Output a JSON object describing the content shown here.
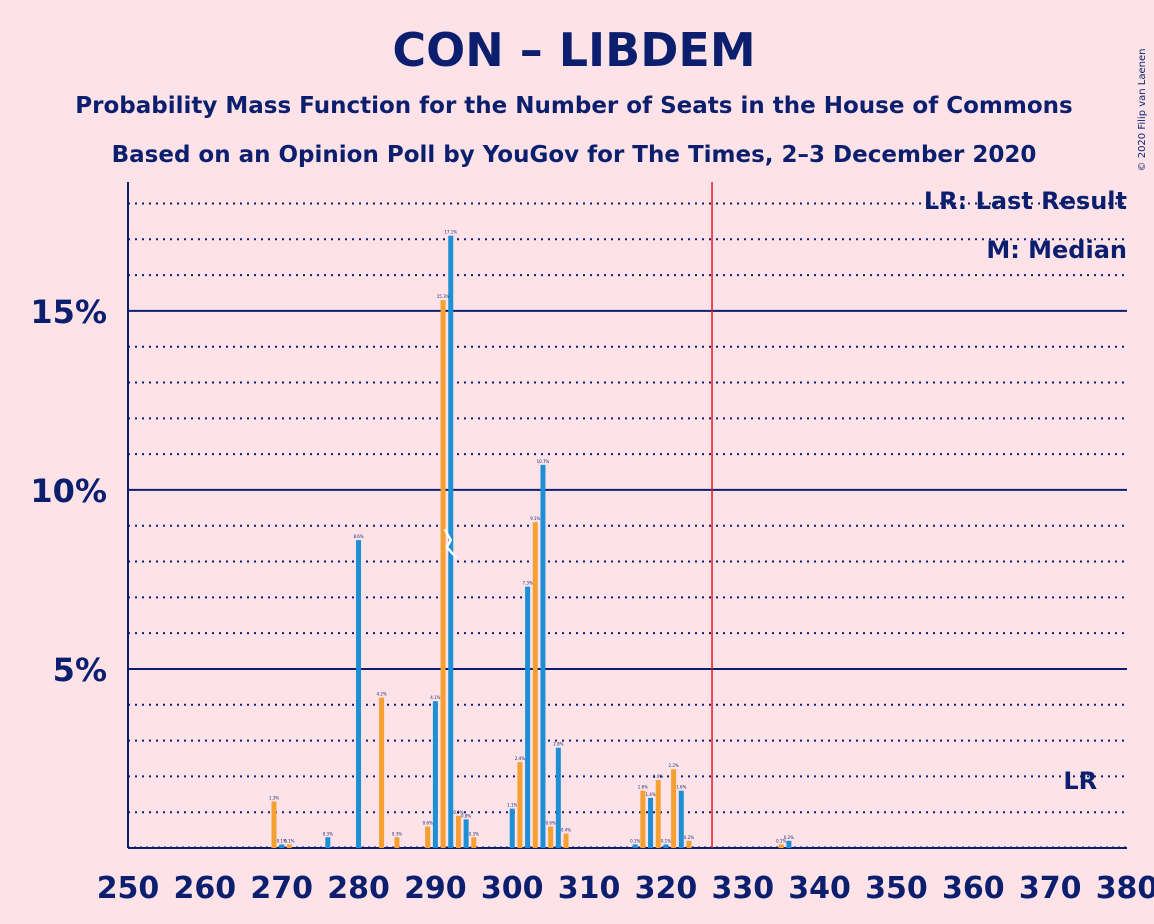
{
  "chart_data": {
    "type": "bar",
    "title": "CON – LIBDEM",
    "subtitle1": "Probability Mass Function for the Number of Seats in the House of Commons",
    "subtitle2": "Based on an Opinion Poll by YouGov for The Times, 2–3 December 2020",
    "copyright": "© 2020 Filip van Laenen",
    "legend": {
      "lr": "LR: Last Result",
      "m": "M: Median",
      "lr_marker": "LR",
      "median_marker": "M"
    },
    "xlim": [
      250,
      380
    ],
    "ylim": [
      0,
      18.6
    ],
    "x_ticks": [
      "250",
      "260",
      "270",
      "280",
      "290",
      "300",
      "310",
      "320",
      "330",
      "340",
      "350",
      "360",
      "370",
      "380"
    ],
    "y_ticks": [
      {
        "value": 5,
        "label": "5%"
      },
      {
        "value": 10,
        "label": "10%"
      },
      {
        "value": 15,
        "label": "15%"
      }
    ],
    "majority_line": 326,
    "last_result": 376,
    "median": 292,
    "colors": {
      "blue": "#1e8fd5",
      "orange": "#f5a030",
      "majority": "#e01a2a",
      "axis": "#0b1f6e"
    },
    "series": [
      {
        "color": "blue",
        "x": [
          270,
          276,
          280,
          290,
          292,
          294,
          300,
          302,
          304,
          306,
          316,
          318,
          320,
          322,
          336
        ],
        "values": [
          0.1,
          0.3,
          8.6,
          4.1,
          17.1,
          0.8,
          1.1,
          7.3,
          10.7,
          2.8,
          0.1,
          1.4,
          0.1,
          1.6,
          0.2
        ]
      },
      {
        "color": "orange",
        "x": [
          269,
          271,
          283,
          285,
          289,
          291,
          293,
          295,
          301,
          303,
          305,
          307,
          317,
          319,
          321,
          323,
          335
        ],
        "values": [
          1.3,
          0.1,
          4.2,
          0.3,
          0.6,
          15.3,
          0.9,
          0.3,
          2.4,
          9.1,
          0.6,
          0.4,
          1.6,
          1.9,
          2.2,
          0.2,
          0.1
        ]
      }
    ]
  }
}
